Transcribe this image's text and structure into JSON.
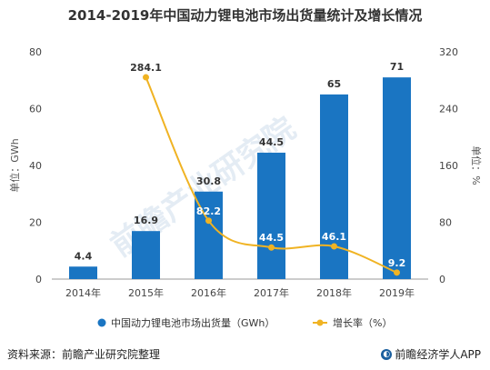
{
  "page": {
    "title": "2014-2019年中国动力锂电池市场出货量统计及增长情况",
    "source": "资料来源：前瞻产业研究院整理",
    "brand": "前瞻经济学人APP",
    "watermark": "前瞻产业研究院"
  },
  "chart_data": {
    "type": "bar",
    "categories": [
      "2014年",
      "2015年",
      "2016年",
      "2017年",
      "2018年",
      "2019年"
    ],
    "series": [
      {
        "name": "中国动力锂电池市场出货量（GWh）",
        "type": "bar",
        "axis": "left",
        "values": [
          4.4,
          16.9,
          30.8,
          44.5,
          65,
          71
        ],
        "labels": [
          "4.4",
          "16.9",
          "30.8",
          "44.5",
          "65",
          "71"
        ]
      },
      {
        "name": "增长率（%）",
        "type": "line",
        "axis": "right",
        "values": [
          null,
          284.1,
          82.2,
          44.5,
          46.1,
          9.2
        ],
        "labels": [
          "",
          "284.1",
          "82.2",
          "44.5",
          "46.1",
          "9.2"
        ]
      }
    ],
    "ylabel_left": "单位：GWh",
    "ylabel_right": "单位：%",
    "ylim_left": [
      0,
      80
    ],
    "ylim_right": [
      0,
      320
    ],
    "yticks_left": [
      "0",
      "20",
      "40",
      "60",
      "80"
    ],
    "yticks_right": [
      "0",
      "80",
      "160",
      "240",
      "320"
    ],
    "grid": false,
    "legend_position": "bottom",
    "colors": {
      "bar": "#1a75c2",
      "line": "#f0b323"
    }
  }
}
